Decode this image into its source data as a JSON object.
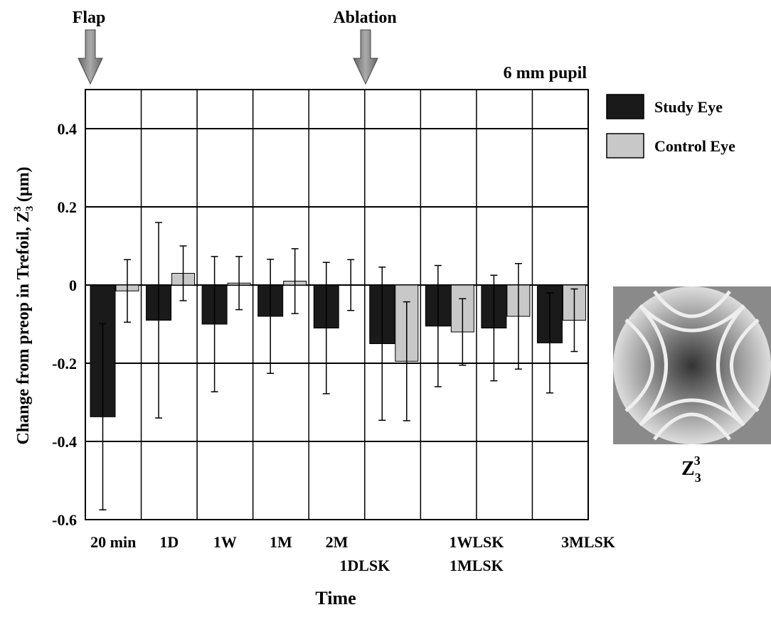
{
  "chart_data": {
    "type": "bar",
    "title": "6 mm pupil",
    "annotations": [
      "Flap",
      "Ablation"
    ],
    "xlabel": "Time",
    "ylabel": {
      "text": "Change from preop  in Trefoil, Z",
      "sub": "3",
      "sup": "3",
      "unit": " (μm)"
    },
    "inset_label": {
      "text": "Z",
      "sub": "3",
      "sup": "3"
    },
    "categories": [
      "20 min",
      "1D",
      "1W",
      "1M",
      "2M",
      "1DLSK",
      "1WLSK",
      "1MLSK",
      "3MLSK"
    ],
    "series": [
      {
        "name": "Study Eye",
        "color": "#1a1a1a",
        "values": [
          -0.337,
          -0.09,
          -0.1,
          -0.08,
          -0.11,
          -0.15,
          -0.105,
          -0.11,
          -0.148
        ],
        "error": [
          0.238,
          0.25,
          0.173,
          0.146,
          0.168,
          0.196,
          0.155,
          0.135,
          0.128
        ]
      },
      {
        "name": "Control Eye",
        "color": "#c8c8c8",
        "values": [
          -0.015,
          0.03,
          0.005,
          0.01,
          0,
          -0.195,
          -0.12,
          -0.08,
          -0.09
        ],
        "error": [
          0.08,
          0.07,
          0.068,
          0.083,
          0.065,
          0.152,
          0.085,
          0.135,
          0.08
        ]
      }
    ],
    "ylim": [
      -0.6,
      0.5
    ],
    "yticks": [
      -0.6,
      -0.4,
      -0.2,
      0,
      0.2,
      0.4
    ],
    "grid": true
  }
}
